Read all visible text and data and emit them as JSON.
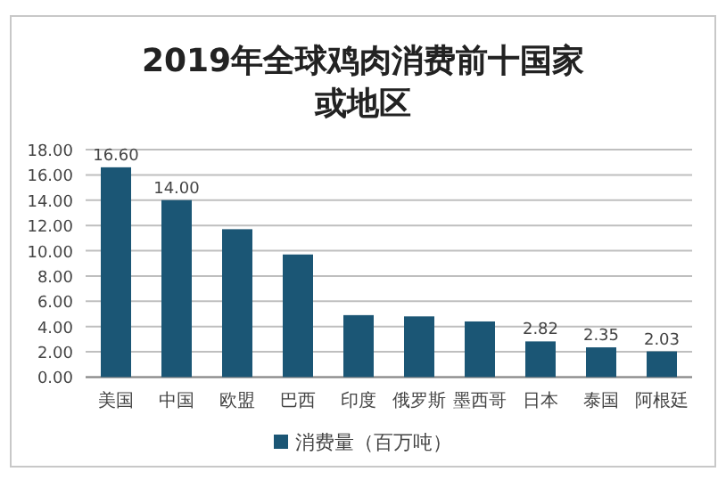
{
  "chart_data": {
    "type": "bar",
    "title": "2019年全球鸡肉消费前十国家或地区",
    "categories": [
      "美国",
      "中国",
      "欧盟",
      "巴西",
      "印度",
      "俄罗斯",
      "墨西哥",
      "日本",
      "泰国",
      "阿根廷"
    ],
    "series": [
      {
        "name": "消费量（百万吨）",
        "color": "#1b5675",
        "values": [
          16.6,
          14.0,
          11.7,
          9.7,
          4.9,
          4.8,
          4.4,
          2.82,
          2.35,
          2.03
        ],
        "value_labels": [
          "16.60",
          "14.00",
          null,
          null,
          null,
          null,
          null,
          "2.82",
          "2.35",
          "2.03"
        ]
      }
    ],
    "ylim": [
      0,
      18
    ],
    "yticks": [
      {
        "value": 0,
        "label": "0.00"
      },
      {
        "value": 2,
        "label": "2.00"
      },
      {
        "value": 4,
        "label": "4.00"
      },
      {
        "value": 6,
        "label": "6.00"
      },
      {
        "value": 8,
        "label": "8.00"
      },
      {
        "value": 10,
        "label": "10.00"
      },
      {
        "value": 12,
        "label": "12.00"
      },
      {
        "value": 14,
        "label": "14.00"
      },
      {
        "value": 16,
        "label": "16.00"
      },
      {
        "value": 18,
        "label": "18.00"
      }
    ],
    "grid": "y",
    "legend": "bottom"
  }
}
